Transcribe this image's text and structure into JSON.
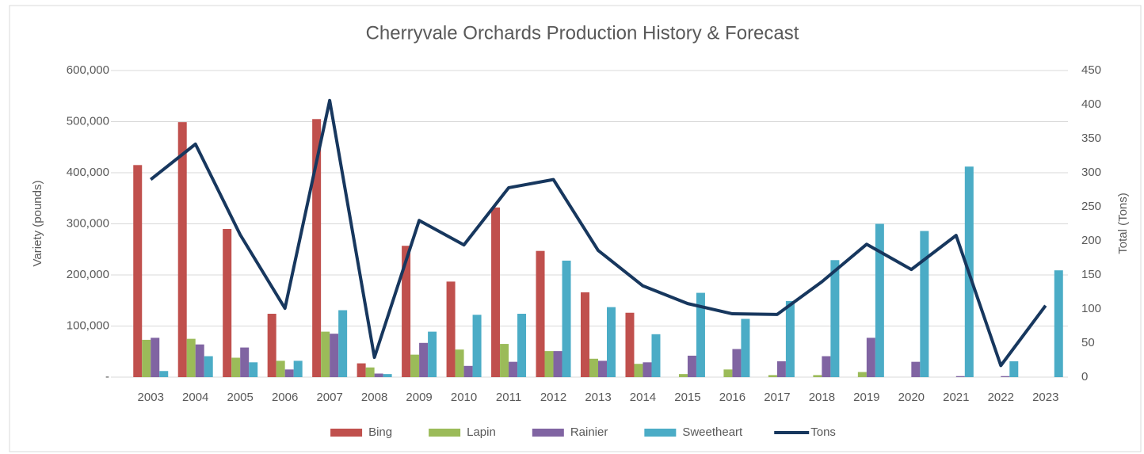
{
  "chart_data": {
    "type": "bar",
    "title": "Cherryvale Orchards Production History & Forecast",
    "y_label": "Variety (pounds)",
    "y2_label": "Total (Tons)",
    "categories": [
      "2003",
      "2004",
      "2005",
      "2006",
      "2007",
      "2008",
      "2009",
      "2010",
      "2011",
      "2012",
      "2013",
      "2014",
      "2015",
      "2016",
      "2017",
      "2018",
      "2019",
      "2020",
      "2021",
      "2022",
      "2023"
    ],
    "series": [
      {
        "name": "Bing",
        "type": "bar",
        "color": "#c0504d",
        "values": [
          415000,
          499000,
          290000,
          124000,
          505000,
          27000,
          257000,
          187000,
          332000,
          247000,
          166000,
          126000,
          0,
          0,
          0,
          0,
          0,
          0,
          0,
          0,
          0
        ]
      },
      {
        "name": "Lapin",
        "type": "bar",
        "color": "#9bbb59",
        "values": [
          73000,
          75000,
          38000,
          32000,
          89000,
          19000,
          44000,
          54000,
          65000,
          51000,
          36000,
          26000,
          6000,
          15000,
          4000,
          4000,
          10000,
          0,
          0,
          0,
          0
        ]
      },
      {
        "name": "Rainier",
        "type": "bar",
        "color": "#8064a2",
        "values": [
          77000,
          64000,
          58000,
          15000,
          85000,
          7000,
          67000,
          22000,
          30000,
          51000,
          32000,
          29000,
          42000,
          55000,
          31000,
          41000,
          77000,
          30000,
          2000,
          2000,
          0
        ]
      },
      {
        "name": "Sweetheart",
        "type": "bar",
        "color": "#4bacc6",
        "values": [
          12000,
          41000,
          29000,
          32000,
          131000,
          6000,
          89000,
          122000,
          124000,
          228000,
          137000,
          84000,
          165000,
          114000,
          149000,
          229000,
          300000,
          286000,
          412000,
          31000,
          209000
        ]
      },
      {
        "name": "Tons",
        "type": "line",
        "axis": "y2",
        "color": "#17375e",
        "values": [
          290,
          342,
          209,
          101,
          406,
          29,
          230,
          194,
          278,
          290,
          186,
          134,
          108,
          93,
          92,
          140,
          195,
          158,
          208,
          17,
          105
        ]
      }
    ],
    "ylim": [
      0,
      600000
    ],
    "yticks": [
      {
        "value": 0,
        "label": "-"
      },
      {
        "value": 100000,
        "label": "100,000"
      },
      {
        "value": 200000,
        "label": "200,000"
      },
      {
        "value": 300000,
        "label": "300,000"
      },
      {
        "value": 400000,
        "label": "400,000"
      },
      {
        "value": 500000,
        "label": "500,000"
      },
      {
        "value": 600000,
        "label": "600,000"
      }
    ],
    "y2lim": [
      0,
      450
    ],
    "y2ticks": [
      0,
      50,
      100,
      150,
      200,
      250,
      300,
      350,
      400,
      450
    ],
    "grid": true,
    "legend": "bottom"
  }
}
